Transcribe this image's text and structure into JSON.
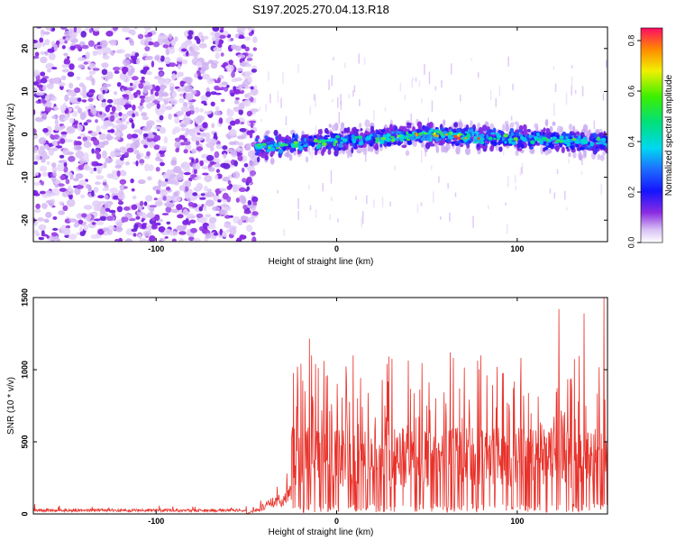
{
  "title": "S197.2025.270.04.13.R18",
  "colors": {
    "background": "#ffffff",
    "axis": "#000000",
    "snr_line": "#e8322b",
    "background_noise": "#8b2be2",
    "noise_light": "#c9a6f0"
  },
  "chart_data": [
    {
      "type": "heatmap",
      "name": "spectrogram",
      "title": "S197.2025.270.04.13.R18",
      "xlabel": "Height of straight line (km)",
      "ylabel": "Frequency (Hz)",
      "xlim": [
        -168,
        150
      ],
      "ylim": [
        -25,
        25
      ],
      "xticks": [
        -100,
        0,
        100
      ],
      "xtick_labels": [
        "-100",
        "0",
        "100"
      ],
      "yticks": [
        -20,
        -10,
        0,
        10,
        20
      ],
      "ytick_labels": [
        "-20",
        "-10",
        "0",
        "10",
        "20"
      ],
      "signal_band_center_hz": [
        {
          "x": -45,
          "y": -3
        },
        {
          "x": 0,
          "y": -1.5
        },
        {
          "x": 50,
          "y": 0
        },
        {
          "x": 100,
          "y": -1
        },
        {
          "x": 150,
          "y": -2
        }
      ],
      "signal_start_km": -45,
      "colorbar": {
        "label": "Normalized spectral amplitude",
        "range": [
          0,
          0.85
        ],
        "ticks": [
          0.0,
          0.2,
          0.4,
          0.6,
          0.8
        ],
        "tick_labels": [
          "0.0",
          "0.2",
          "0.4",
          "0.6",
          "0.8"
        ]
      }
    },
    {
      "type": "line",
      "name": "snr",
      "xlabel": "Height of straight line (km)",
      "ylabel": "SNR (10 * v/v)",
      "xlim": [
        -168,
        150
      ],
      "ylim": [
        0,
        1500
      ],
      "xticks": [
        -100,
        0,
        100
      ],
      "xtick_labels": [
        "-100",
        "0",
        "100"
      ],
      "yticks": [
        0,
        500,
        1000,
        1500
      ],
      "ytick_labels": [
        "0",
        "500",
        "1000",
        "1500"
      ],
      "series": [
        {
          "name": "SNR",
          "segments": [
            {
              "x": [
                -168,
                -50
              ],
              "baseline": 25,
              "noise": 20
            },
            {
              "x": [
                -50,
                -25
              ],
              "baseline": 60,
              "noise": 140
            },
            {
              "x": [
                -25,
                150
              ],
              "baseline": 200,
              "noise": 500
            }
          ],
          "peaks": [
            {
              "x": -15,
              "y": 1215
            },
            {
              "x": 28,
              "y": 1040
            },
            {
              "x": 63,
              "y": 1120
            },
            {
              "x": 123,
              "y": 1420
            },
            {
              "x": 137,
              "y": 1390
            },
            {
              "x": 148,
              "y": 1500
            }
          ]
        }
      ]
    }
  ]
}
